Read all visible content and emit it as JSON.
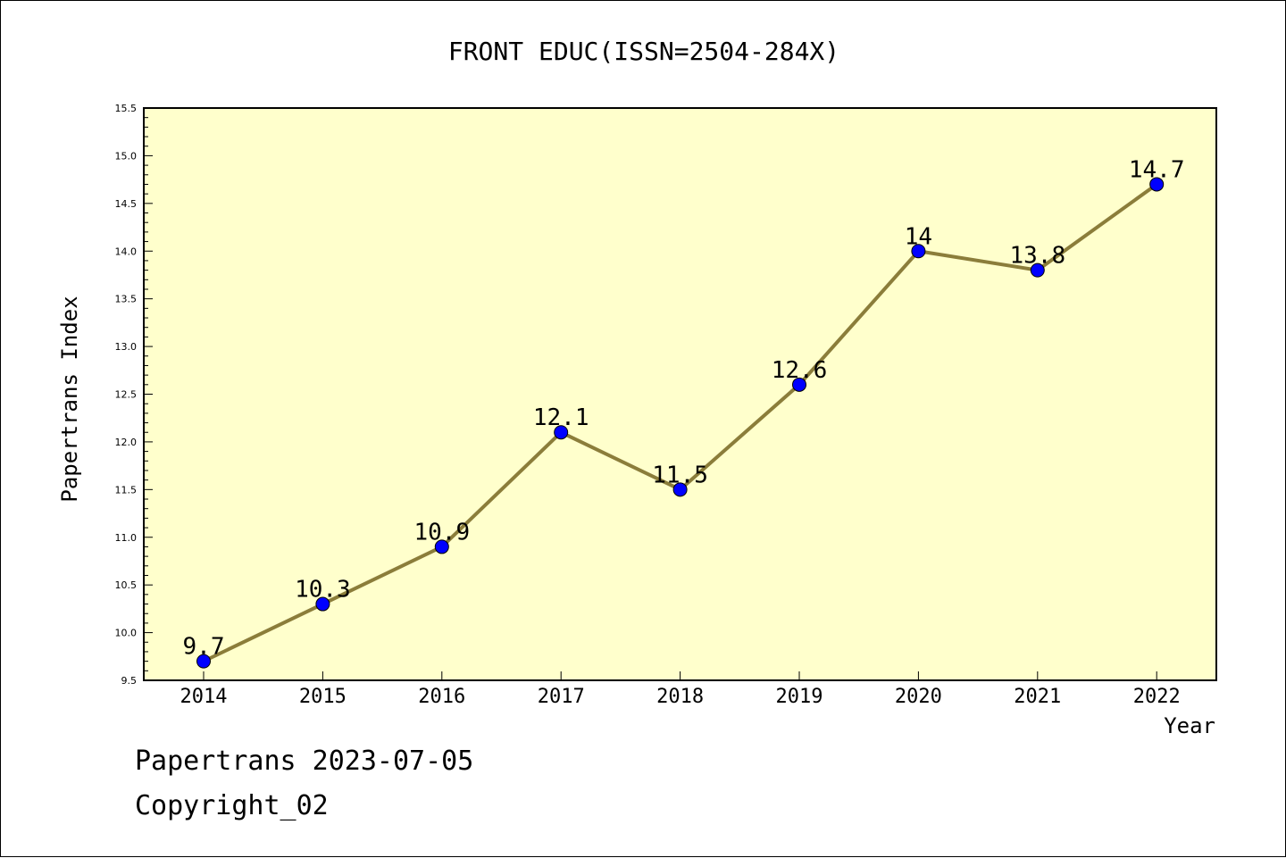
{
  "chart_data": {
    "type": "line",
    "title": "FRONT EDUC(ISSN=2504-284X)",
    "xlabel": "Year",
    "ylabel": "Papertrans Index",
    "categories": [
      "2014",
      "2015",
      "2016",
      "2017",
      "2018",
      "2019",
      "2020",
      "2021",
      "2022"
    ],
    "series": [
      {
        "values": [
          9.7,
          10.3,
          10.9,
          12.1,
          11.5,
          12.6,
          14.0,
          13.8,
          14.7
        ]
      }
    ],
    "data_labels": [
      "9.7",
      "10.3",
      "10.9",
      "12.1",
      "11.5",
      "12.6",
      "14",
      "13.8",
      "14.7"
    ],
    "ylim": [
      9.5,
      15.5
    ],
    "yticks": [
      "9.5",
      "10.0",
      "10.5",
      "11.0",
      "11.5",
      "12.0",
      "12.5",
      "13.0",
      "13.5",
      "14.0",
      "14.5",
      "15.0",
      "15.5"
    ],
    "grid": false,
    "legend": "none",
    "colors": {
      "plot_background": "#ffffcc",
      "line": "#8b7d3a",
      "marker": "#0000ff"
    }
  },
  "footer": {
    "date_line": "Papertrans 2023-07-05",
    "copyright_line": "Copyright_02"
  }
}
